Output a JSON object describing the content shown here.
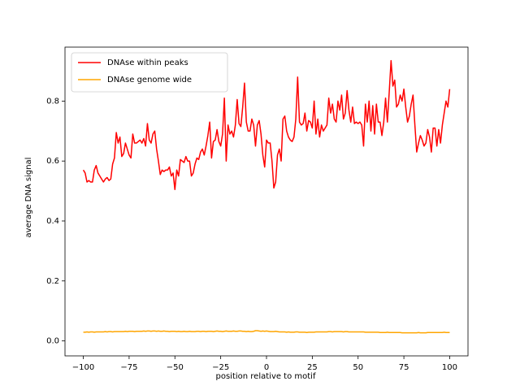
{
  "chart_data": {
    "type": "line",
    "x_label": "position relative to motif",
    "y_label": "average DNA signal",
    "x": [
      -100,
      -99,
      -98,
      -97,
      -96,
      -95,
      -94,
      -93,
      -92,
      -91,
      -90,
      -89,
      -88,
      -87,
      -86,
      -85,
      -84,
      -83,
      -82,
      -81,
      -80,
      -79,
      -78,
      -77,
      -76,
      -75,
      -74,
      -73,
      -72,
      -71,
      -70,
      -69,
      -68,
      -67,
      -66,
      -65,
      -64,
      -63,
      -62,
      -61,
      -60,
      -59,
      -58,
      -57,
      -56,
      -55,
      -54,
      -53,
      -52,
      -51,
      -50,
      -49,
      -48,
      -47,
      -46,
      -45,
      -44,
      -43,
      -42,
      -41,
      -40,
      -39,
      -38,
      -37,
      -36,
      -35,
      -34,
      -33,
      -32,
      -31,
      -30,
      -29,
      -28,
      -27,
      -26,
      -25,
      -24,
      -23,
      -22,
      -21,
      -20,
      -19,
      -18,
      -17,
      -16,
      -15,
      -14,
      -13,
      -12,
      -11,
      -10,
      -9,
      -8,
      -7,
      -6,
      -5,
      -4,
      -3,
      -2,
      -1,
      0,
      1,
      2,
      3,
      4,
      5,
      6,
      7,
      8,
      9,
      10,
      11,
      12,
      13,
      14,
      15,
      16,
      17,
      18,
      19,
      20,
      21,
      22,
      23,
      24,
      25,
      26,
      27,
      28,
      29,
      30,
      31,
      32,
      33,
      34,
      35,
      36,
      37,
      38,
      39,
      40,
      41,
      42,
      43,
      44,
      45,
      46,
      47,
      48,
      49,
      50,
      51,
      52,
      53,
      54,
      55,
      56,
      57,
      58,
      59,
      60,
      61,
      62,
      63,
      64,
      65,
      66,
      67,
      68,
      69,
      70,
      71,
      72,
      73,
      74,
      75,
      76,
      77,
      78,
      79,
      80,
      81,
      82,
      83,
      84,
      85,
      86,
      87,
      88,
      89,
      90,
      91,
      92,
      93,
      94,
      95,
      96,
      97,
      98,
      99,
      100
    ],
    "series": [
      {
        "name": "DNAse within peaks",
        "color": "#ff0000",
        "values": [
          0.57,
          0.56,
          0.53,
          0.535,
          0.53,
          0.53,
          0.57,
          0.585,
          0.56,
          0.55,
          0.54,
          0.53,
          0.54,
          0.545,
          0.535,
          0.54,
          0.59,
          0.61,
          0.695,
          0.66,
          0.68,
          0.615,
          0.625,
          0.66,
          0.64,
          0.62,
          0.61,
          0.69,
          0.66,
          0.66,
          0.665,
          0.67,
          0.66,
          0.675,
          0.65,
          0.725,
          0.67,
          0.66,
          0.69,
          0.7,
          0.64,
          0.6,
          0.555,
          0.57,
          0.565,
          0.57,
          0.57,
          0.58,
          0.55,
          0.56,
          0.505,
          0.57,
          0.55,
          0.605,
          0.6,
          0.595,
          0.615,
          0.6,
          0.6,
          0.55,
          0.56,
          0.59,
          0.61,
          0.605,
          0.63,
          0.64,
          0.62,
          0.65,
          0.685,
          0.73,
          0.61,
          0.665,
          0.67,
          0.705,
          0.665,
          0.65,
          0.69,
          0.81,
          0.6,
          0.72,
          0.69,
          0.7,
          0.68,
          0.72,
          0.805,
          0.725,
          0.715,
          0.78,
          0.86,
          0.73,
          0.7,
          0.7,
          0.74,
          0.72,
          0.65,
          0.72,
          0.735,
          0.69,
          0.62,
          0.58,
          0.67,
          0.66,
          0.66,
          0.6,
          0.51,
          0.53,
          0.62,
          0.64,
          0.6,
          0.74,
          0.75,
          0.7,
          0.68,
          0.67,
          0.665,
          0.68,
          0.74,
          0.88,
          0.73,
          0.72,
          0.725,
          0.76,
          0.7,
          0.735,
          0.73,
          0.71,
          0.8,
          0.69,
          0.74,
          0.68,
          0.72,
          0.7,
          0.71,
          0.72,
          0.81,
          0.76,
          0.79,
          0.74,
          0.73,
          0.8,
          0.77,
          0.82,
          0.74,
          0.76,
          0.835,
          0.77,
          0.73,
          0.78,
          0.725,
          0.73,
          0.725,
          0.73,
          0.72,
          0.65,
          0.79,
          0.73,
          0.8,
          0.7,
          0.785,
          0.69,
          0.79,
          0.73,
          0.73,
          0.685,
          0.73,
          0.81,
          0.73,
          0.83,
          0.935,
          0.85,
          0.87,
          0.78,
          0.79,
          0.82,
          0.8,
          0.84,
          0.78,
          0.73,
          0.75,
          0.79,
          0.82,
          0.72,
          0.63,
          0.66,
          0.685,
          0.67,
          0.65,
          0.66,
          0.705,
          0.68,
          0.63,
          0.71,
          0.71,
          0.65,
          0.705,
          0.66,
          0.72,
          0.76,
          0.8,
          0.78,
          0.84
        ]
      },
      {
        "name": "DNAse genome wide",
        "color": "#ffa500",
        "values": [
          0.029,
          0.029,
          0.03,
          0.029,
          0.03,
          0.03,
          0.029,
          0.03,
          0.03,
          0.03,
          0.03,
          0.03,
          0.031,
          0.03,
          0.031,
          0.031,
          0.03,
          0.031,
          0.031,
          0.031,
          0.031,
          0.031,
          0.031,
          0.032,
          0.031,
          0.032,
          0.032,
          0.032,
          0.031,
          0.032,
          0.032,
          0.032,
          0.032,
          0.033,
          0.032,
          0.033,
          0.033,
          0.032,
          0.033,
          0.033,
          0.032,
          0.033,
          0.032,
          0.032,
          0.033,
          0.032,
          0.032,
          0.031,
          0.032,
          0.032,
          0.032,
          0.031,
          0.032,
          0.031,
          0.031,
          0.032,
          0.031,
          0.031,
          0.032,
          0.031,
          0.031,
          0.031,
          0.032,
          0.032,
          0.031,
          0.032,
          0.032,
          0.031,
          0.032,
          0.032,
          0.032,
          0.031,
          0.032,
          0.033,
          0.032,
          0.032,
          0.031,
          0.032,
          0.033,
          0.032,
          0.032,
          0.032,
          0.033,
          0.032,
          0.032,
          0.033,
          0.033,
          0.032,
          0.032,
          0.031,
          0.032,
          0.031,
          0.031,
          0.032,
          0.034,
          0.034,
          0.033,
          0.032,
          0.033,
          0.032,
          0.033,
          0.032,
          0.031,
          0.031,
          0.031,
          0.032,
          0.031,
          0.03,
          0.03,
          0.03,
          0.03,
          0.029,
          0.03,
          0.029,
          0.029,
          0.029,
          0.03,
          0.03,
          0.029,
          0.029,
          0.029,
          0.029,
          0.028,
          0.029,
          0.029,
          0.029,
          0.029,
          0.03,
          0.03,
          0.03,
          0.03,
          0.03,
          0.03,
          0.03,
          0.031,
          0.031,
          0.03,
          0.031,
          0.031,
          0.031,
          0.031,
          0.031,
          0.03,
          0.031,
          0.031,
          0.03,
          0.03,
          0.03,
          0.03,
          0.03,
          0.03,
          0.03,
          0.03,
          0.03,
          0.029,
          0.029,
          0.029,
          0.029,
          0.029,
          0.029,
          0.029,
          0.029,
          0.028,
          0.028,
          0.028,
          0.028,
          0.029,
          0.028,
          0.028,
          0.028,
          0.028,
          0.028,
          0.028,
          0.028,
          0.027,
          0.027,
          0.027,
          0.027,
          0.027,
          0.027,
          0.027,
          0.027,
          0.027,
          0.028,
          0.027,
          0.027,
          0.027,
          0.027,
          0.028,
          0.028,
          0.028,
          0.028,
          0.028,
          0.028,
          0.028,
          0.028,
          0.028,
          0.029,
          0.028,
          0.028,
          0.028
        ]
      }
    ],
    "xlim": [
      -110,
      110
    ],
    "ylim": [
      -0.05,
      0.98
    ],
    "xticks": [
      {
        "value": -100,
        "label": "−100"
      },
      {
        "value": -75,
        "label": "−75"
      },
      {
        "value": -50,
        "label": "−50"
      },
      {
        "value": -25,
        "label": "−25"
      },
      0,
      25,
      50,
      75,
      100
    ],
    "yticks": [
      {
        "value": 0,
        "label": "0.0"
      },
      {
        "value": 0.2,
        "label": "0.2"
      },
      {
        "value": 0.4,
        "label": "0.4"
      },
      {
        "value": 0.6,
        "label": "0.6"
      },
      {
        "value": 0.8,
        "label": "0.8"
      }
    ],
    "legend": "upper left"
  }
}
